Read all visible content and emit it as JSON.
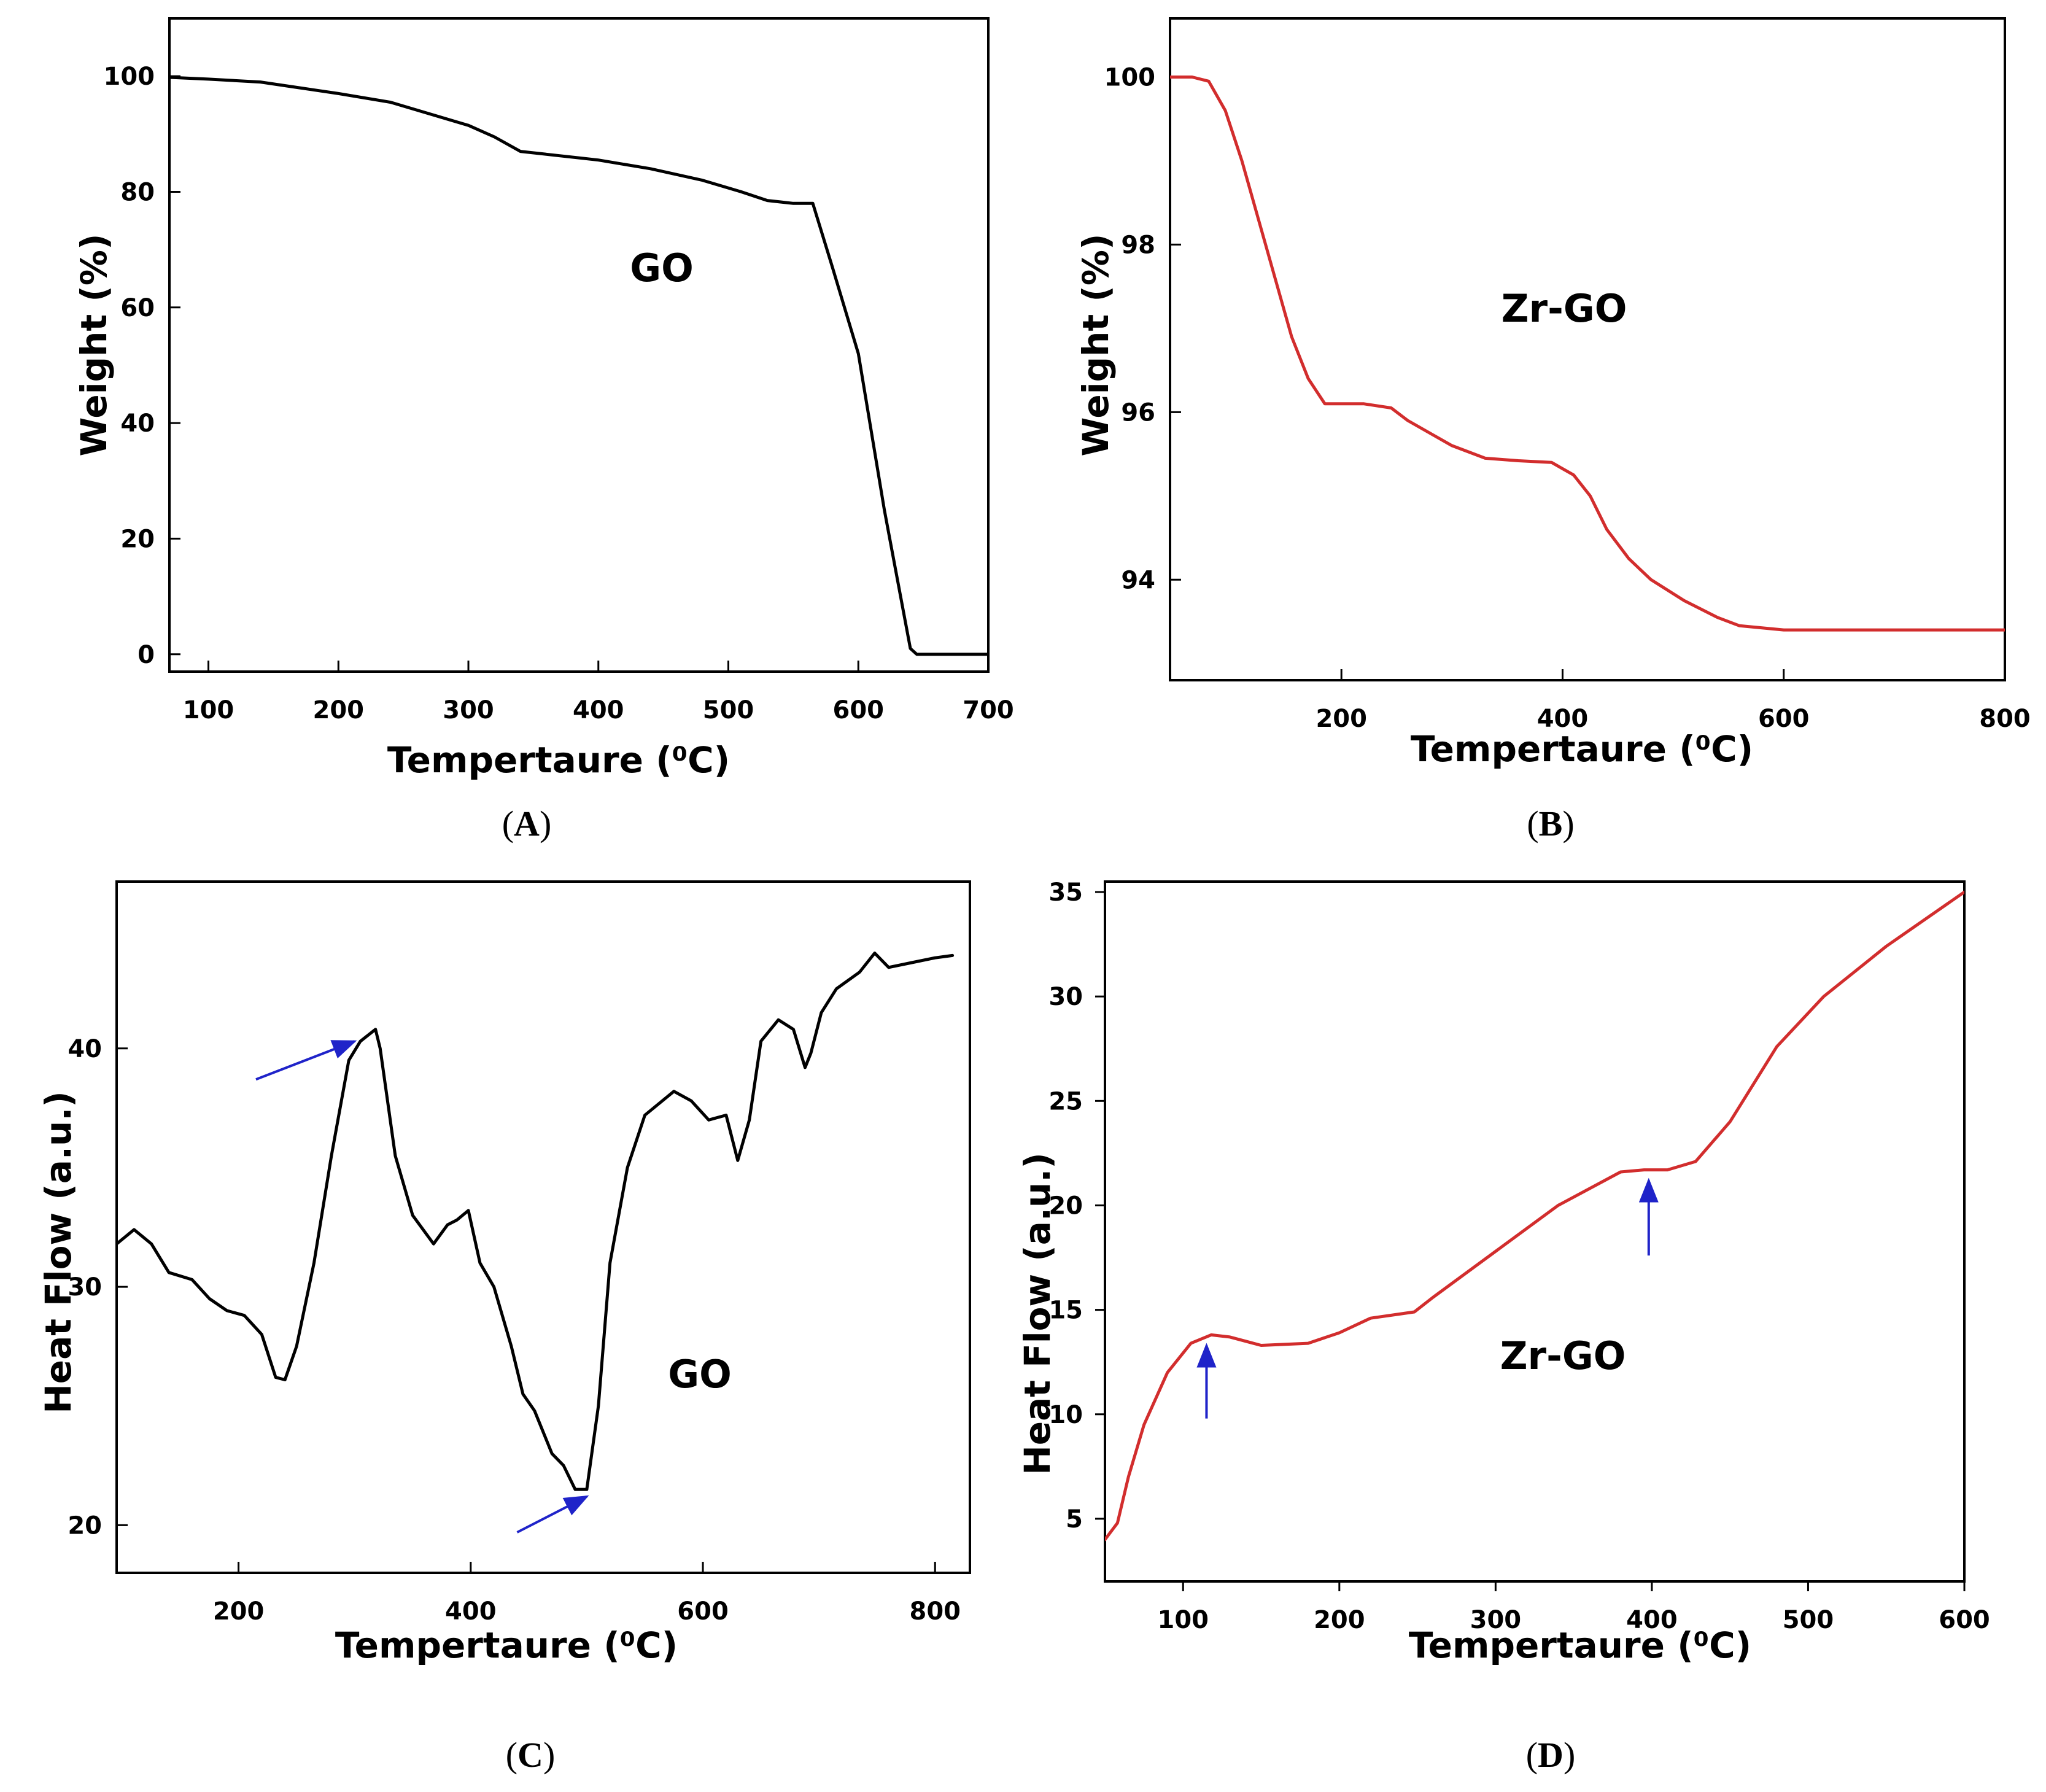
{
  "figure": {
    "captions": [
      "A",
      "B",
      "C",
      "D"
    ]
  },
  "chart_data": [
    {
      "id": "A",
      "type": "line",
      "xlabel": "Tempertaure (⁰C)",
      "ylabel": "Weight (%)",
      "annotation": "GO",
      "xlim": [
        70,
        700
      ],
      "ylim": [
        -3,
        110
      ],
      "xticks": [
        100,
        200,
        300,
        400,
        500,
        600,
        700
      ],
      "yticks": [
        0,
        20,
        40,
        60,
        80,
        100
      ],
      "line_color": "#000000",
      "series": [
        {
          "x": [
            70,
            100,
            140,
            170,
            200,
            240,
            270,
            300,
            320,
            340,
            360,
            400,
            440,
            480,
            510,
            530,
            550,
            565,
            580,
            600,
            620,
            640,
            645,
            700
          ],
          "y": [
            99.8,
            99.5,
            99,
            98,
            97,
            95.5,
            93.5,
            91.5,
            89.5,
            87,
            86.5,
            85.5,
            84,
            82,
            80,
            78.5,
            78,
            78,
            67,
            52,
            25,
            1,
            0,
            0
          ]
        }
      ],
      "arrows": []
    },
    {
      "id": "B",
      "type": "line",
      "xlabel": "Tempertaure (⁰C)",
      "ylabel": "Weight (%)",
      "annotation": "Zr-GO",
      "xlim": [
        45,
        800
      ],
      "ylim": [
        92.8,
        100.7
      ],
      "xticks": [
        200,
        400,
        600,
        800
      ],
      "yticks": [
        94,
        96,
        98,
        100
      ],
      "line_color": "#d22d2d",
      "series": [
        {
          "x": [
            45,
            65,
            80,
            95,
            110,
            125,
            140,
            155,
            170,
            185,
            200,
            220,
            245,
            260,
            280,
            300,
            330,
            360,
            390,
            410,
            425,
            440,
            460,
            480,
            510,
            540,
            560,
            600,
            700,
            800
          ],
          "y": [
            100,
            100,
            99.95,
            99.6,
            99,
            98.3,
            97.6,
            96.9,
            96.4,
            96.1,
            96.1,
            96.1,
            96.05,
            95.9,
            95.75,
            95.6,
            95.45,
            95.42,
            95.4,
            95.25,
            95,
            94.6,
            94.25,
            94,
            93.75,
            93.55,
            93.45,
            93.4,
            93.4,
            93.4
          ]
        }
      ],
      "arrows": []
    },
    {
      "id": "C",
      "type": "line",
      "xlabel": "Tempertaure (⁰C)",
      "ylabel": "Heat Flow (a.u.)",
      "annotation": "GO",
      "xlim": [
        95,
        830
      ],
      "ylim": [
        18,
        47
      ],
      "xticks": [
        200,
        400,
        600,
        800
      ],
      "yticks": [
        20,
        30,
        40
      ],
      "line_color": "#000000",
      "series": [
        {
          "x": [
            95,
            110,
            125,
            140,
            160,
            175,
            190,
            205,
            220,
            232,
            240,
            250,
            265,
            280,
            295,
            305,
            318,
            322,
            335,
            350,
            368,
            380,
            388,
            398,
            408,
            420,
            435,
            445,
            455,
            470,
            480,
            490,
            500,
            510,
            520,
            535,
            550,
            575,
            590,
            605,
            620,
            630,
            640,
            650,
            665,
            678,
            688,
            693,
            702,
            715,
            735,
            748,
            760,
            780,
            800,
            815
          ],
          "y": [
            31.8,
            32.4,
            31.8,
            30.6,
            30.3,
            29.5,
            29,
            28.8,
            28,
            26.2,
            26.1,
            27.5,
            31,
            35.5,
            39.5,
            40.3,
            40.8,
            40,
            35.5,
            33,
            31.8,
            32.6,
            32.8,
            33.2,
            31,
            30,
            27.5,
            25.5,
            24.8,
            23,
            22.5,
            21.5,
            21.5,
            25,
            31,
            35,
            37.2,
            38.2,
            37.8,
            37,
            37.2,
            35.3,
            37,
            40.3,
            41.2,
            40.8,
            39.2,
            39.8,
            41.5,
            42.5,
            43.2,
            44,
            43.4,
            43.6,
            43.8,
            43.9
          ]
        }
      ],
      "arrows": [
        {
          "from": [
            215,
            38.7
          ],
          "to": [
            300,
            40.3
          ]
        },
        {
          "from": [
            440,
            19.7
          ],
          "to": [
            500,
            21.2
          ]
        }
      ]
    },
    {
      "id": "D",
      "type": "line",
      "xlabel": "Tempertaure (⁰C)",
      "ylabel": "Heat Flow (a.u.)",
      "annotation": "Zr-GO",
      "xlim": [
        50,
        600
      ],
      "ylim": [
        2,
        35.5
      ],
      "xticks": [
        100,
        200,
        300,
        400,
        500,
        600
      ],
      "yticks": [
        5,
        10,
        15,
        20,
        25,
        30,
        35
      ],
      "line_color": "#d22d2d",
      "series": [
        {
          "x": [
            50,
            58,
            65,
            75,
            90,
            105,
            118,
            130,
            150,
            180,
            200,
            220,
            248,
            260,
            300,
            340,
            380,
            395,
            410,
            428,
            450,
            480,
            510,
            550,
            600
          ],
          "y": [
            4,
            4.8,
            7,
            9.5,
            12,
            13.4,
            13.8,
            13.7,
            13.3,
            13.4,
            13.9,
            14.6,
            14.9,
            15.6,
            17.8,
            20,
            21.6,
            21.7,
            21.7,
            22.1,
            24,
            27.6,
            30,
            32.4,
            35
          ]
        }
      ],
      "arrows": [
        {
          "from": [
            115,
            9.8
          ],
          "to": [
            115,
            13.3
          ]
        },
        {
          "from": [
            398,
            17.6
          ],
          "to": [
            398,
            21.2
          ]
        }
      ]
    }
  ]
}
